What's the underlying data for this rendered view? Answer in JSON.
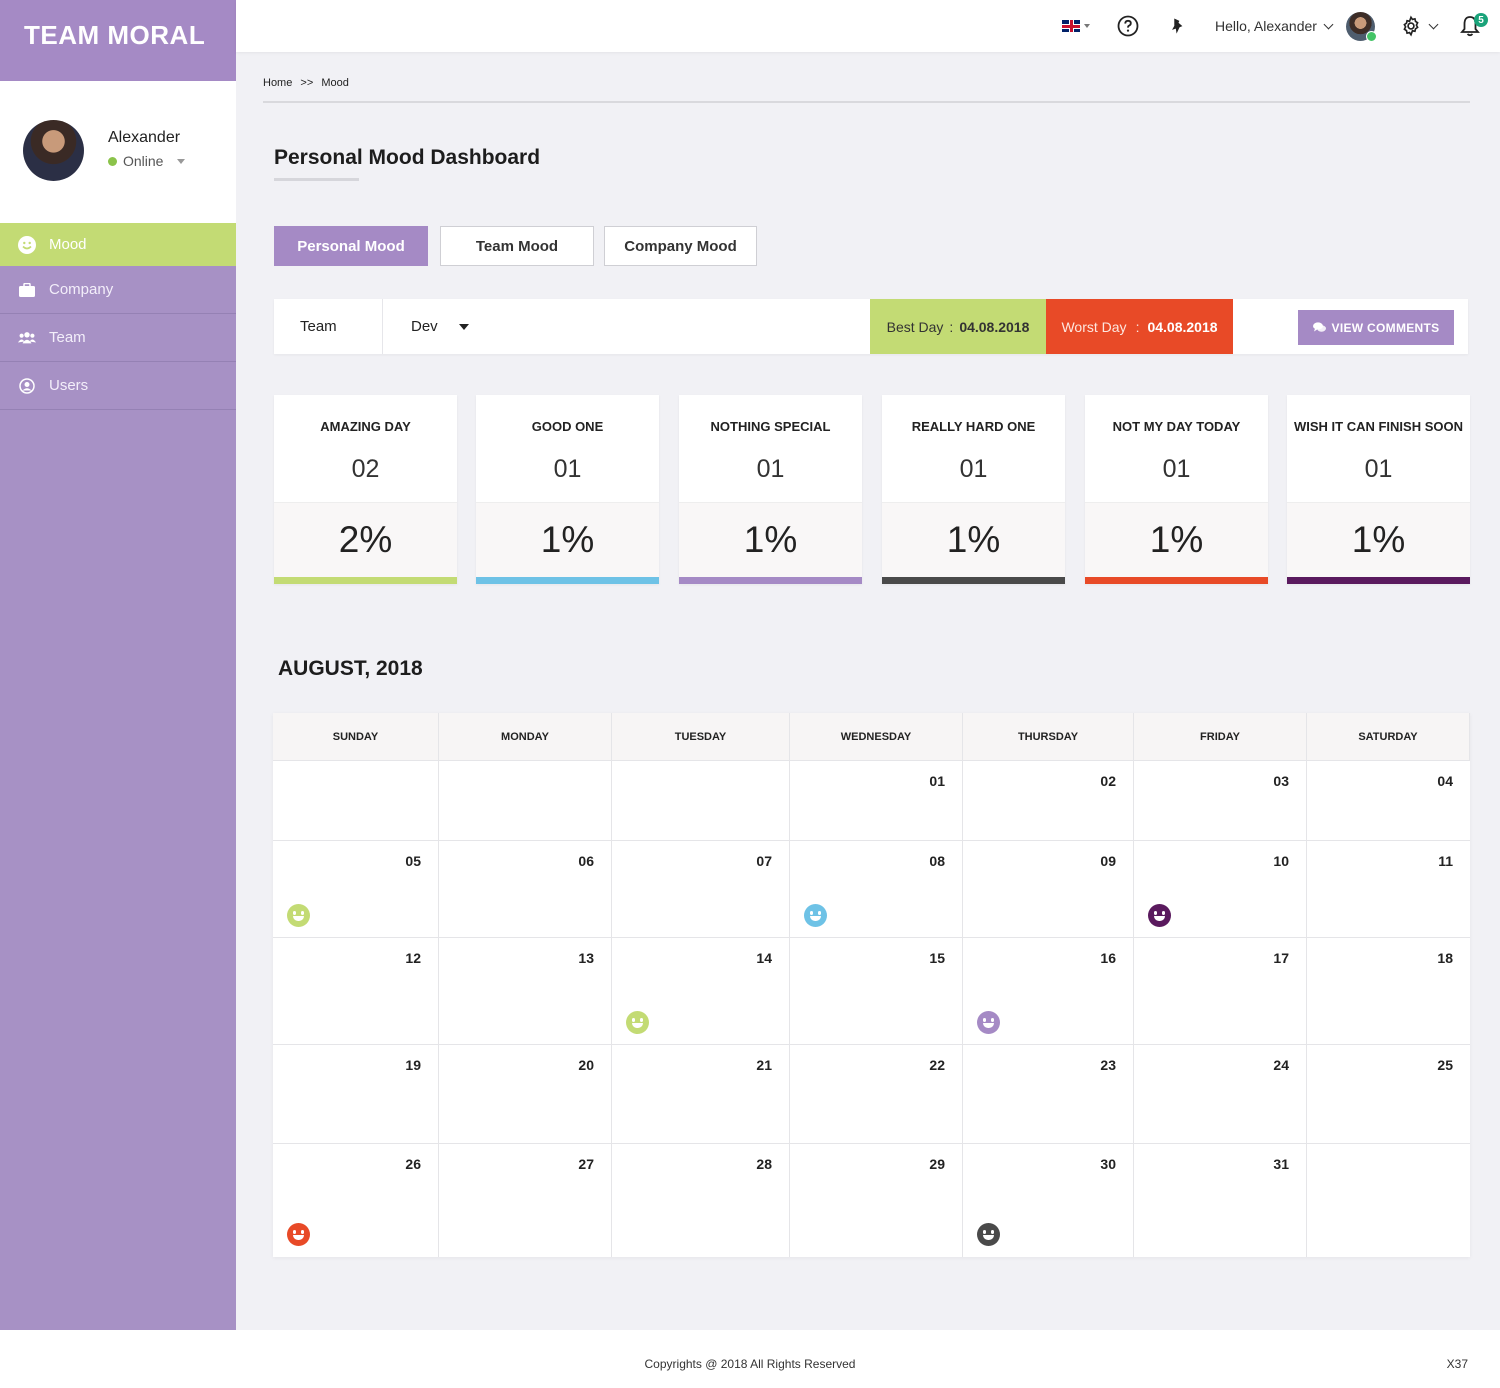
{
  "app": {
    "brand": "TEAM MORAL"
  },
  "sidebar": {
    "user": {
      "name": "Alexander",
      "status": "Online"
    },
    "items": [
      {
        "label": "Mood",
        "icon": "smiley-icon",
        "active": true
      },
      {
        "label": "Company",
        "icon": "briefcase-icon",
        "active": false
      },
      {
        "label": "Team",
        "icon": "group-icon",
        "active": false
      },
      {
        "label": "Users",
        "icon": "user-circle-icon",
        "active": false
      }
    ]
  },
  "header": {
    "greeting": "Hello, Alexander",
    "notifications": "5"
  },
  "breadcrumb": {
    "home": "Home",
    "sep": ">>",
    "current": "Mood"
  },
  "page": {
    "title": "Personal Mood Dashboard"
  },
  "tabs": [
    "Personal Mood",
    "Team Mood",
    "Company Mood"
  ],
  "filter": {
    "team_label": "Team",
    "team_value": "Dev",
    "best_label": "Best Day",
    "best_value": "04.08.2018",
    "worst_label": "Worst Day",
    "worst_value": "04.08.2018",
    "colon": ":",
    "view_comments": "VIEW COMMENTS"
  },
  "stats": [
    {
      "label": "AMAZING DAY",
      "count": "02",
      "pct": "2%",
      "color": "#c3db74"
    },
    {
      "label": "GOOD ONE",
      "count": "01",
      "pct": "1%",
      "color": "#6ec2e6"
    },
    {
      "label": "NOTHING SPECIAL",
      "count": "01",
      "pct": "1%",
      "color": "#a58ac5"
    },
    {
      "label": "REALLY HARD ONE",
      "count": "01",
      "pct": "1%",
      "color": "#4a4a4a"
    },
    {
      "label": "NOT MY DAY TODAY",
      "count": "01",
      "pct": "1%",
      "color": "#e84a27"
    },
    {
      "label": "WISH IT CAN FINISH SOON",
      "count": "01",
      "pct": "1%",
      "color": "#5a1a5e"
    }
  ],
  "calendar": {
    "title": "AUGUST, 2018",
    "days": [
      "SUNDAY",
      "MONDAY",
      "TUESDAY",
      "WEDNESDAY",
      "THURSDAY",
      "FRIDAY",
      "SATURDAY"
    ],
    "weeks": [
      [
        "",
        "",
        "",
        "01",
        "02",
        "03",
        "04"
      ],
      [
        "05",
        "06",
        "07",
        "08",
        "09",
        "10",
        "11"
      ],
      [
        "12",
        "13",
        "14",
        "15",
        "16",
        "17",
        "18"
      ],
      [
        "19",
        "20",
        "21",
        "22",
        "23",
        "24",
        "25"
      ],
      [
        "26",
        "27",
        "28",
        "29",
        "30",
        "31",
        ""
      ]
    ],
    "moods": [
      {
        "date": "05",
        "mood": "AMAZING DAY",
        "color": "#c3db74"
      },
      {
        "date": "08",
        "mood": "GOOD ONE",
        "color": "#6ec2e6"
      },
      {
        "date": "10",
        "mood": "WISH IT CAN FINISH SOON",
        "color": "#5a1a5e"
      },
      {
        "date": "14",
        "mood": "AMAZING DAY",
        "color": "#c3db74"
      },
      {
        "date": "16",
        "mood": "NOTHING SPECIAL",
        "color": "#a58ac5"
      },
      {
        "date": "26",
        "mood": "NOT MY DAY TODAY",
        "color": "#e84a27"
      },
      {
        "date": "30",
        "mood": "REALLY HARD ONE",
        "color": "#4a4a4a"
      }
    ]
  },
  "footer": {
    "copyright": "Copyrights @ 2018 All Rights Reserved",
    "code": "X37"
  }
}
